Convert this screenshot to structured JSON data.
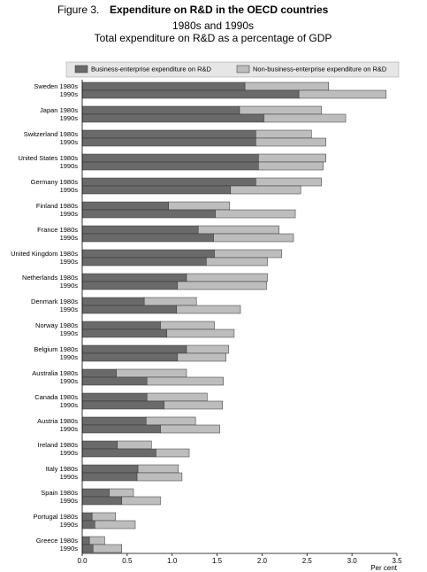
{
  "chart_data": {
    "type": "stacked-bar-horizontal",
    "title_prefix": "Figure 3.",
    "title": "Expenditure on R&D in the OECD countries",
    "subtitle": "1980s and 1990s",
    "subtitle2": "Total expenditure on R&D as a percentage of GDP",
    "x_label": "Per cent",
    "legend": "top",
    "categories": [
      "Sweden 1980s",
      "1990s",
      "Japan 1980s",
      "1990s",
      "Switzerland 1980s",
      "1990s",
      "United States 1980s",
      "1990s",
      "Germany 1980s",
      "1990s",
      "Finland 1980s",
      "1990s",
      "France 1980s",
      "1990s",
      "United Kingdom 1980s",
      "1990s",
      "Netherlands 1980s",
      "1990s",
      "Denmark 1980s",
      "1990s",
      "Norway 1980s",
      "1990s",
      "Belgium 1980s",
      "1990s",
      "Australia 1980s",
      "1990s",
      "Canada 1980s",
      "1990s",
      "Austria 1980s",
      "1990s",
      "Ireland 1980s",
      "1990s",
      "Italy 1980s",
      "1990s",
      "Spain 1980s",
      "1990s",
      "Portugal 1980s",
      "1990s",
      "Greece 1980s",
      "1990s"
    ],
    "series": [
      {
        "name": "Business-enterprise expenditure on R&D",
        "color": "#6a6a6a",
        "values": [
          1.81,
          2.41,
          1.75,
          2.02,
          1.93,
          1.93,
          1.96,
          1.96,
          1.93,
          1.65,
          0.96,
          1.48,
          1.29,
          1.46,
          1.47,
          1.38,
          1.16,
          1.06,
          0.69,
          1.05,
          0.87,
          0.94,
          1.16,
          1.06,
          0.38,
          0.72,
          0.72,
          0.91,
          0.71,
          0.87,
          0.39,
          0.82,
          0.62,
          0.61,
          0.3,
          0.44,
          0.11,
          0.14,
          0.08,
          0.12
        ]
      },
      {
        "name": "Non-business-enterprise expenditure on R&D",
        "color": "#bdbdbd",
        "values": [
          0.93,
          0.97,
          0.91,
          0.91,
          0.62,
          0.78,
          0.75,
          0.72,
          0.73,
          0.78,
          0.68,
          0.89,
          0.9,
          0.89,
          0.75,
          0.68,
          0.9,
          0.99,
          0.58,
          0.71,
          0.6,
          0.75,
          0.47,
          0.54,
          0.78,
          0.85,
          0.67,
          0.65,
          0.55,
          0.66,
          0.38,
          0.37,
          0.45,
          0.5,
          0.27,
          0.43,
          0.26,
          0.45,
          0.17,
          0.32
        ]
      }
    ],
    "xlim": [
      0,
      3.5
    ],
    "xticks": [
      {
        "value": 0,
        "label": "0.0"
      },
      0.5,
      {
        "value": 1,
        "label": "1.0"
      },
      1.5,
      {
        "value": 2,
        "label": "2.0"
      },
      2.5,
      {
        "value": 3,
        "label": "3.0"
      },
      3.5
    ]
  }
}
